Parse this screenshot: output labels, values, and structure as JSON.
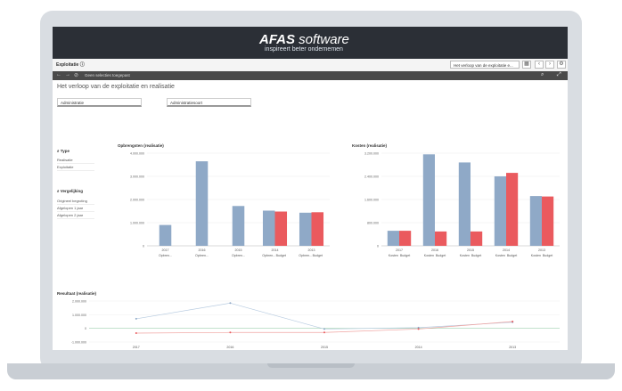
{
  "banner": {
    "brand_bold": "AFAS",
    "brand_rest": " software",
    "tagline": "inspireert beter ondernemen"
  },
  "toolbar": {
    "app_title": "Exploitatie",
    "sheet_select": "Het verloop van de exploitatie e..."
  },
  "selection_bar": {
    "text": "Geen selecties toegepast"
  },
  "sheet": {
    "title": "Het verloop van de exploitatie en realisatie"
  },
  "filters": [
    {
      "label": "Administratie"
    },
    {
      "label": "Administratiesoort"
    }
  ],
  "listbox_type": {
    "header": "Type",
    "items": [
      "Realisatie",
      "Exploitatie"
    ]
  },
  "listbox_vergelijking": {
    "header": "Vergelijking",
    "items": [
      "Origineel begroting",
      "Afgelopen 1 jaar",
      "Afgelopen 2 jaar"
    ]
  },
  "colors": {
    "primary": "#8fa9c7",
    "secondary": "#ea5a5e"
  },
  "chart_data": [
    {
      "type": "bar",
      "title": "Opbrengsten (realisatie)",
      "groups": [
        "2017",
        "2016",
        "2015",
        "2014",
        "2013"
      ],
      "bar_labels": [
        [
          "Opbren..."
        ],
        [
          "Opbren..."
        ],
        [
          "Opbren..."
        ],
        [
          "Opbren...",
          "Budget"
        ],
        [
          "Opbren...",
          "Budget"
        ]
      ],
      "series": [
        {
          "values": [
            900000,
            3650000,
            1720000,
            1520000,
            1430000
          ]
        },
        {
          "values": [
            null,
            null,
            null,
            1480000,
            1450000
          ]
        }
      ],
      "yticks": [
        "0",
        "1.000.000",
        "2.000.000",
        "3.000.000",
        "4.000.000"
      ],
      "ylim": [
        0,
        4000000
      ]
    },
    {
      "type": "bar",
      "title": "Kosten (realisatie)",
      "groups": [
        "2017",
        "2016",
        "2015",
        "2014",
        "2013"
      ],
      "bar_labels": [
        [
          "Kosten",
          "Budget"
        ],
        [
          "Kosten",
          "Budget"
        ],
        [
          "Kosten",
          "Budget"
        ],
        [
          "Kosten",
          "Budget"
        ],
        [
          "Kosten",
          "Budget"
        ]
      ],
      "series": [
        {
          "values": [
            650000,
            3950000,
            3600000,
            3000000,
            2150000
          ]
        },
        {
          "values": [
            650000,
            620000,
            620000,
            3150000,
            2130000
          ]
        }
      ],
      "yticks": [
        "0",
        "800.000",
        "1.600.000",
        "2.400.000",
        "3.200.000"
      ],
      "ylim": [
        0,
        4000000
      ]
    },
    {
      "type": "line",
      "title": "Resultaat (realisatie)",
      "x": [
        "2017",
        "2016",
        "2015",
        "2014",
        "2013"
      ],
      "series": [
        {
          "values": [
            700000,
            1850000,
            -50000,
            50000,
            450000
          ]
        },
        {
          "values": [
            -350000,
            -300000,
            -300000,
            -50000,
            500000
          ]
        }
      ],
      "yticks": [
        "-1.000.000",
        "0",
        "1.000.000",
        "2.000.000"
      ],
      "ylim": [
        -1000000,
        2000000
      ]
    }
  ]
}
